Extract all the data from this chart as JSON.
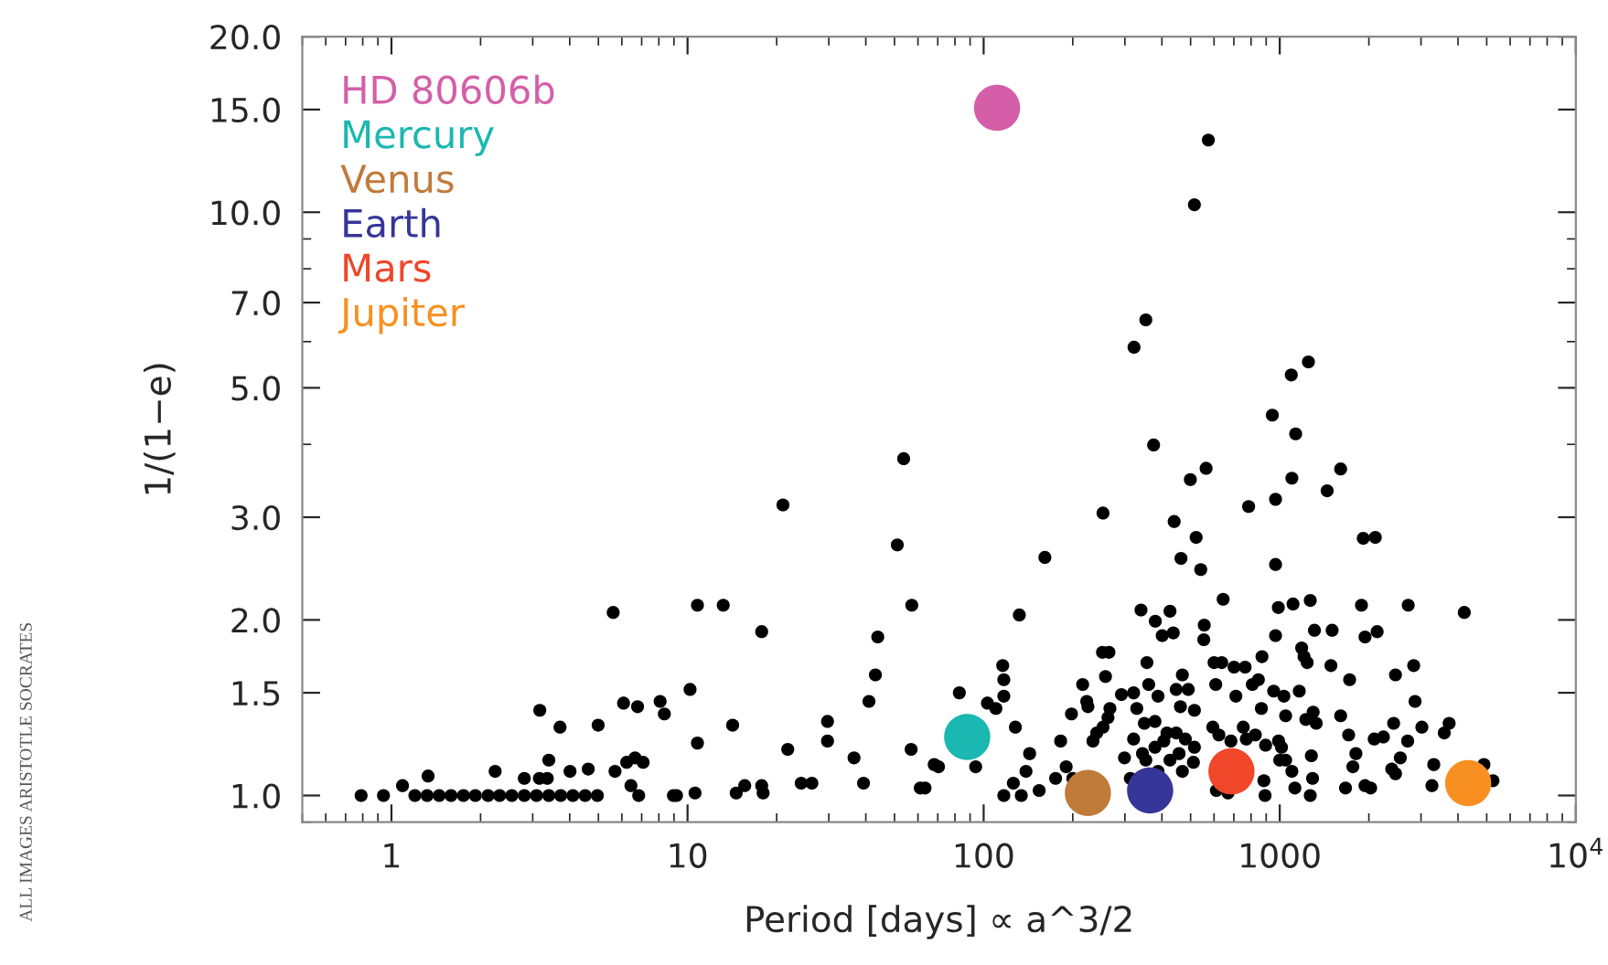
{
  "chart_data": {
    "type": "scatter",
    "xlabel": "Period [days] ∝ a^3/2",
    "ylabel": "1/(1−e)",
    "log": "xy",
    "grid": false,
    "legend": "top left",
    "marker": "circle",
    "xlim": [
      0.5,
      10000
    ],
    "xticks": [
      1,
      10,
      100,
      1000,
      {
        "value": 10000,
        "label": "10$^{4}$"
      }
    ],
    "ylim": [
      0.9,
      20
    ],
    "yticks": [
      {
        "value": 1,
        "label": "1.0"
      },
      {
        "value": 1.5,
        "label": "1.5"
      },
      {
        "value": 2,
        "label": "2.0"
      },
      {
        "value": 3,
        "label": "3.0"
      },
      {
        "value": 5,
        "label": "5.0"
      },
      {
        "value": 7,
        "label": "7.0"
      },
      {
        "value": 10,
        "label": "10.0"
      },
      {
        "value": 15,
        "label": "15.0"
      },
      {
        "value": 20,
        "label": "20.0"
      }
    ],
    "annotations": [
      "ALL IMAGES ARISTOTLE SOCRATES"
    ],
    "series": [
      {
        "color": "#000000",
        "x": [
          0.79,
          0.94,
          1.09,
          1.33,
          1.2,
          1.32,
          1.45,
          1.59,
          1.75,
          1.92,
          2.24,
          2.12,
          2.32,
          2.55,
          2.81,
          3.09,
          3.4,
          3.73,
          4.1,
          4.51,
          4.96,
          2.81,
          3.16,
          3.36,
          3.17,
          3.4,
          3.71,
          4.01,
          4.62,
          4.99,
          5.61,
          5.69,
          6.08,
          6.23,
          6.44,
          6.65,
          6.78,
          6.84,
          7.08,
          8.08,
          8.35,
          8.96,
          9.18,
          10.2,
          10.6,
          10.8,
          10.8,
          13.2,
          14.2,
          14.6,
          15.6,
          17.8,
          17.8,
          18.0,
          21.0,
          21.8,
          24.2,
          26.3,
          29.7,
          29.7,
          36.5,
          39.3,
          41.0,
          43.1,
          43.9,
          51.1,
          53.7,
          57.2,
          56.9,
          61.1,
          63.4,
          68.1,
          70.4,
          94.0,
          574,
          515,
          353,
          322,
          1250,
          1094,
          944,
          1132,
          375,
          564,
          1606,
          253,
          161,
          132,
          499,
          1099,
          1446,
          785,
          968,
          440,
          522,
          464,
          541,
          968,
          1915,
          2103,
          644,
          989,
          1109,
          1268,
          1888,
          2716,
          4200,
          340,
          380,
          426,
          401,
          437,
          556,
          554,
          968,
          1310,
          1503,
          1941,
          2133,
          252,
          265,
          356,
          600,
          637,
          701,
          764,
          871,
          1186,
          1208,
          1489,
          1238,
          2460,
          2834,
          1722,
          116,
          117,
          117,
          82.8,
          103,
          110,
          128,
          216,
          223,
          225,
          258,
          198,
          267,
          263,
          253,
          241,
          234,
          292,
          321,
          329,
          349,
          379,
          388,
          361,
          447,
          491,
          469,
          462,
          515,
          608,
          711,
          847,
          808,
          954,
          1033,
          1164,
          867,
          1047,
          1225,
          1297,
          1328,
          1606,
          2864,
          3020,
          3733,
          3594,
          2085,
          2239,
          2425,
          2704,
          1709,
          1766,
          1808,
          1941,
          2028,
          2389,
          2460,
          2554,
          3313,
          3266,
          4893,
          5250,
          1668,
          1279,
          1291,
          1268,
          1047,
          1099,
          1125,
          884,
          892,
          827,
          896,
          991,
          1014,
          1000,
          753,
          771,
          594,
          623,
          684,
          416,
          447,
          480,
          515,
          457,
          426,
          469,
          511,
          321,
          344,
          379,
          406,
          353,
          388,
          299,
          313,
          182,
          190,
          175,
          200,
          143,
          139,
          126,
          117,
          134,
          154,
          611,
          669
        ],
        "values": [
          1.0,
          1.0,
          1.04,
          1.08,
          1.0,
          1.0,
          1.0,
          1.0,
          1.0,
          1.0,
          1.1,
          1.0,
          1.0,
          1.0,
          1.0,
          1.0,
          1.0,
          1.0,
          1.0,
          1.0,
          1.0,
          1.07,
          1.07,
          1.07,
          1.4,
          1.15,
          1.31,
          1.1,
          1.11,
          1.32,
          2.06,
          1.1,
          1.44,
          1.14,
          1.04,
          1.16,
          1.42,
          1.0,
          1.14,
          1.45,
          1.38,
          1.0,
          1.0,
          1.52,
          1.01,
          2.12,
          1.23,
          2.12,
          1.32,
          1.01,
          1.04,
          1.91,
          1.04,
          1.01,
          3.15,
          1.2,
          1.05,
          1.05,
          1.34,
          1.24,
          1.16,
          1.05,
          1.45,
          1.61,
          1.87,
          2.69,
          3.78,
          2.12,
          1.2,
          1.03,
          1.03,
          1.13,
          1.12,
          1.12,
          13.3,
          10.3,
          6.54,
          5.87,
          5.54,
          5.26,
          4.49,
          4.17,
          3.99,
          3.64,
          3.63,
          3.05,
          2.56,
          2.04,
          3.48,
          3.5,
          3.33,
          3.13,
          3.22,
          2.95,
          2.77,
          2.55,
          2.44,
          2.49,
          2.76,
          2.77,
          2.17,
          2.1,
          2.13,
          2.16,
          2.12,
          2.12,
          2.06,
          2.08,
          1.99,
          2.07,
          1.88,
          1.9,
          1.96,
          1.85,
          1.88,
          1.92,
          1.92,
          1.87,
          1.91,
          1.76,
          1.76,
          1.69,
          1.69,
          1.69,
          1.66,
          1.66,
          1.73,
          1.79,
          1.73,
          1.67,
          1.69,
          1.61,
          1.67,
          1.58,
          1.67,
          1.58,
          1.48,
          1.5,
          1.44,
          1.41,
          1.31,
          1.55,
          1.45,
          1.42,
          1.6,
          1.38,
          1.41,
          1.36,
          1.31,
          1.28,
          1.24,
          1.49,
          1.5,
          1.41,
          1.33,
          1.34,
          1.48,
          1.55,
          1.52,
          1.52,
          1.61,
          1.42,
          1.4,
          1.55,
          1.48,
          1.58,
          1.55,
          1.51,
          1.48,
          1.51,
          1.41,
          1.37,
          1.35,
          1.39,
          1.33,
          1.37,
          1.45,
          1.31,
          1.33,
          1.28,
          1.25,
          1.26,
          1.33,
          1.24,
          1.27,
          1.12,
          1.18,
          1.04,
          1.03,
          1.11,
          1.09,
          1.16,
          1.13,
          1.04,
          1.13,
          1.06,
          1.03,
          1.17,
          1.07,
          1.0,
          1.15,
          1.1,
          1.03,
          1.06,
          1.0,
          1.27,
          1.22,
          1.24,
          1.21,
          1.15,
          1.31,
          1.25,
          1.31,
          1.27,
          1.24,
          1.28,
          1.28,
          1.25,
          1.21,
          1.18,
          1.15,
          1.1,
          1.14,
          1.25,
          1.18,
          1.21,
          1.24,
          1.15,
          1.1,
          1.16,
          1.07,
          1.24,
          1.12,
          1.07,
          1.07,
          1.18,
          1.1,
          1.05,
          1.0,
          1.0,
          1.02,
          1.02,
          1.01
        ]
      },
      {
        "name": "HD 80606b",
        "color": "#d45fa8",
        "x": [
          111
        ],
        "values": [
          15.1
        ]
      },
      {
        "name": "Mercury",
        "color": "#1ab8b0",
        "x": [
          88
        ],
        "values": [
          1.26
        ]
      },
      {
        "name": "Venus",
        "color": "#c07a3a",
        "x": [
          225
        ],
        "values": [
          1.01
        ]
      },
      {
        "name": "Earth",
        "color": "#35359a",
        "x": [
          365
        ],
        "values": [
          1.02
        ]
      },
      {
        "name": "Mars",
        "color": "#f0462a",
        "x": [
          687
        ],
        "values": [
          1.1
        ]
      },
      {
        "name": "Jupiter",
        "color": "#f79020",
        "x": [
          4330
        ],
        "values": [
          1.05
        ]
      }
    ]
  }
}
